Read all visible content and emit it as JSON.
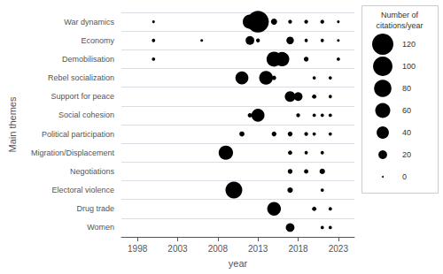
{
  "chart_data": {
    "type": "scatter",
    "xlabel": "year",
    "ylabel": "Main themes",
    "categories": [
      "War dynamics",
      "Economy",
      "Demobilisation",
      "Rebel socialization",
      "Support for peace",
      "Social cohesion",
      "Political participation",
      "Migration/Displacement",
      "Negotiations",
      "Electoral violence",
      "Drug trade",
      "Women"
    ],
    "x": [
      2000,
      2012,
      2013,
      2015,
      2017,
      2019,
      2021,
      2023,
      2000,
      2006,
      2012,
      2013,
      2017,
      2019,
      2021,
      2023,
      2000,
      2015,
      2016,
      2019,
      2023,
      2011,
      2014,
      2015,
      2020,
      2022,
      2017,
      2018,
      2020,
      2022,
      2012,
      2013,
      2018,
      2020,
      2021,
      2022,
      2011,
      2015,
      2017,
      2019,
      2020,
      2022,
      2009,
      2017,
      2019,
      2021,
      2017,
      2019,
      2021,
      2010,
      2017,
      2021,
      2015,
      2020,
      2022,
      2017,
      2021,
      2022
    ],
    "y": [
      "War dynamics",
      "War dynamics",
      "War dynamics",
      "War dynamics",
      "War dynamics",
      "War dynamics",
      "War dynamics",
      "War dynamics",
      "Economy",
      "Economy",
      "Economy",
      "Economy",
      "Economy",
      "Economy",
      "Economy",
      "Economy",
      "Demobilisation",
      "Demobilisation",
      "Demobilisation",
      "Demobilisation",
      "Demobilisation",
      "Rebel socialization",
      "Rebel socialization",
      "Rebel socialization",
      "Rebel socialization",
      "Rebel socialization",
      "Support for peace",
      "Support for peace",
      "Support for peace",
      "Support for peace",
      "Social cohesion",
      "Social cohesion",
      "Social cohesion",
      "Social cohesion",
      "Social cohesion",
      "Social cohesion",
      "Political participation",
      "Political participation",
      "Political participation",
      "Political participation",
      "Political participation",
      "Political participation",
      "Migration/Displacement",
      "Migration/Displacement",
      "Migration/Displacement",
      "Migration/Displacement",
      "Negotiations",
      "Negotiations",
      "Negotiations",
      "Electoral violence",
      "Electoral violence",
      "Electoral violence",
      "Drug trade",
      "Drug trade",
      "Drug trade",
      "Women",
      "Women",
      "Women"
    ],
    "sizes": [
      2,
      55,
      125,
      10,
      4,
      4,
      4,
      2,
      3,
      2,
      20,
      4,
      15,
      3,
      3,
      2,
      3,
      60,
      55,
      6,
      3,
      45,
      50,
      5,
      3,
      3,
      30,
      20,
      5,
      3,
      5,
      45,
      4,
      3,
      3,
      3,
      7,
      6,
      6,
      4,
      3,
      3,
      55,
      5,
      3,
      3,
      6,
      5,
      8,
      75,
      8,
      3,
      50,
      5,
      3,
      20,
      3,
      3
    ],
    "color": "#000000",
    "xlim": [
      1996,
      2025
    ],
    "xticks": [
      1998,
      2003,
      2008,
      2013,
      2018,
      2023
    ],
    "grid": true,
    "size_legend": {
      "title": "Number of\ncitations/year",
      "values": [
        120,
        100,
        80,
        60,
        40,
        20,
        0
      ]
    }
  }
}
